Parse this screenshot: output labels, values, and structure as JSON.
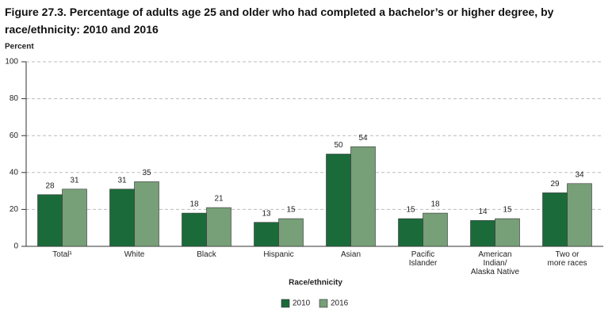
{
  "chart_data": {
    "type": "bar",
    "title": "Figure 27.3. Percentage of adults age 25 and older who had completed a bachelor’s or higher degree, by race/ethnicity: 2010 and 2016",
    "y_label": "Percent",
    "x_label": "Race/ethnicity",
    "categories": [
      "Total¹",
      "White",
      "Black",
      "Hispanic",
      "Asian",
      "Pacific\nIslander",
      "American\nIndian/\nAlaska Native",
      "Two or\nmore races"
    ],
    "series": [
      {
        "name": "2010",
        "color": "#1b6b3a",
        "values": [
          28,
          31,
          18,
          13,
          50,
          15,
          14,
          29
        ]
      },
      {
        "name": "2016",
        "color": "#779f78",
        "values": [
          31,
          35,
          21,
          15,
          54,
          18,
          15,
          34
        ]
      }
    ],
    "ylim": [
      0,
      100
    ],
    "yticks": [
      0,
      20,
      40,
      60,
      80,
      100
    ],
    "grid": true
  }
}
